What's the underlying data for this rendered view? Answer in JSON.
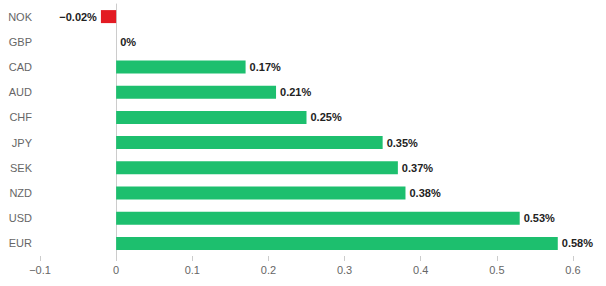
{
  "chart_data": {
    "type": "bar",
    "orientation": "horizontal",
    "categories": [
      "NOK",
      "GBP",
      "CAD",
      "AUD",
      "CHF",
      "JPY",
      "SEK",
      "NZD",
      "USD",
      "EUR"
    ],
    "values": [
      -0.02,
      0,
      0.17,
      0.21,
      0.25,
      0.35,
      0.37,
      0.38,
      0.53,
      0.58
    ],
    "value_labels": [
      "−0.02%",
      "0%",
      "0.17%",
      "0.21%",
      "0.25%",
      "0.35%",
      "0.37%",
      "0.38%",
      "0.53%",
      "0.58%"
    ],
    "colors": [
      "#e31b23",
      "#1dbf6e",
      "#1dbf6e",
      "#1dbf6e",
      "#1dbf6e",
      "#1dbf6e",
      "#1dbf6e",
      "#1dbf6e",
      "#1dbf6e",
      "#1dbf6e"
    ],
    "xlim": [
      -0.1,
      0.6
    ],
    "xticks": [
      {
        "value": -0.1,
        "label": "−0.1"
      },
      0,
      0.1,
      0.2,
      0.3,
      0.4,
      0.5,
      0.6
    ],
    "data_labels": true,
    "grid": false
  }
}
